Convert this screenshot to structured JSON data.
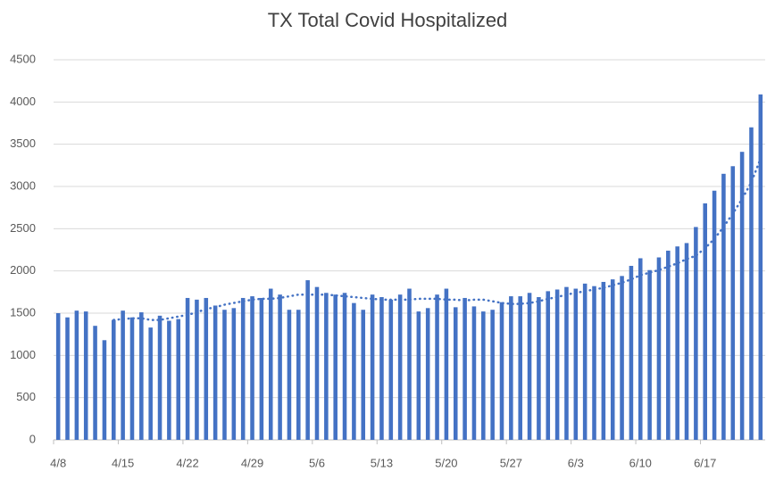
{
  "chart_data": {
    "type": "bar",
    "title": "TX Total Covid Hospitalized",
    "categories": [
      "4/8",
      null,
      null,
      null,
      null,
      null,
      null,
      "4/15",
      null,
      null,
      null,
      null,
      null,
      null,
      "4/22",
      null,
      null,
      null,
      null,
      null,
      null,
      "4/29",
      null,
      null,
      null,
      null,
      null,
      null,
      "5/6",
      null,
      null,
      null,
      null,
      null,
      null,
      "5/13",
      null,
      null,
      null,
      null,
      null,
      null,
      "5/20",
      null,
      null,
      null,
      null,
      null,
      null,
      "5/27",
      null,
      null,
      null,
      null,
      null,
      null,
      "6/3",
      null,
      null,
      null,
      null,
      null,
      null,
      "6/10",
      null,
      null,
      null,
      null,
      null,
      null,
      "6/17",
      null,
      null,
      null,
      null,
      null,
      null
    ],
    "series": [
      {
        "type": "bar",
        "color": "#4472c4",
        "values": [
          1500,
          1450,
          1530,
          1520,
          1350,
          1180,
          1420,
          1530,
          1450,
          1510,
          1330,
          1470,
          1410,
          1430,
          1680,
          1660,
          1680,
          1590,
          1540,
          1560,
          1680,
          1700,
          1680,
          1790,
          1720,
          1540,
          1540,
          1890,
          1810,
          1740,
          1720,
          1740,
          1620,
          1540,
          1720,
          1690,
          1660,
          1720,
          1790,
          1520,
          1560,
          1720,
          1790,
          1570,
          1680,
          1580,
          1520,
          1540,
          1630,
          1700,
          1700,
          1740,
          1690,
          1760,
          1780,
          1810,
          1790,
          1850,
          1820,
          1870,
          1900,
          1940,
          2060,
          2150,
          2010,
          2160,
          2240,
          2290,
          2330,
          2520,
          2800,
          2950,
          3150,
          3240,
          3410,
          3700,
          4090
        ]
      },
      {
        "type": "line",
        "color": "#4472c4",
        "line_style": "dotted",
        "values": [
          null,
          null,
          null,
          null,
          null,
          null,
          1420,
          1430,
          1440,
          1440,
          1420,
          1420,
          1440,
          1460,
          1480,
          1510,
          1550,
          1570,
          1600,
          1620,
          1640,
          1660,
          1670,
          1670,
          1680,
          1700,
          1720,
          1720,
          1720,
          1720,
          1710,
          1700,
          1690,
          1680,
          1670,
          1660,
          1660,
          1660,
          1660,
          1670,
          1670,
          1670,
          1660,
          1660,
          1650,
          1660,
          1660,
          1640,
          1620,
          1610,
          1610,
          1620,
          1640,
          1670,
          1690,
          1720,
          1740,
          1760,
          1780,
          1800,
          1830,
          1860,
          1900,
          1950,
          1980,
          2010,
          2050,
          2090,
          2140,
          2180,
          2270,
          2380,
          2520,
          2680,
          2850,
          3050,
          3330
        ]
      }
    ],
    "ylim": [
      0,
      4500
    ],
    "yticks": [
      0,
      500,
      1000,
      1500,
      2000,
      2500,
      3000,
      3500,
      4000,
      4500
    ],
    "grid": true
  }
}
